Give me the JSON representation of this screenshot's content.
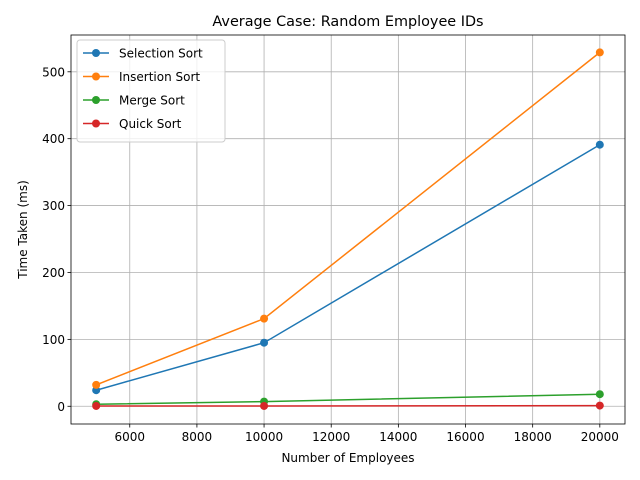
{
  "chart_data": {
    "type": "line",
    "title": "Average Case: Random Employee IDs",
    "xlabel": "Number of Employees",
    "ylabel": "Time Taken (ms)",
    "x": [
      5000,
      10000,
      20000
    ],
    "xlim": [
      4250,
      20750
    ],
    "ylim": [
      -26.5,
      555
    ],
    "xticks": [
      6000,
      8000,
      10000,
      12000,
      14000,
      16000,
      18000,
      20000
    ],
    "yticks": [
      0,
      100,
      200,
      300,
      400,
      500
    ],
    "grid": true,
    "legend_position": "upper-left",
    "marker": "circle",
    "series": [
      {
        "name": "Selection Sort",
        "color": "#1f77b4",
        "values": [
          24,
          95,
          391
        ]
      },
      {
        "name": "Insertion Sort",
        "color": "#ff7f0e",
        "values": [
          32,
          131,
          529
        ]
      },
      {
        "name": "Merge Sort",
        "color": "#2ca02c",
        "values": [
          3,
          7,
          18
        ]
      },
      {
        "name": "Quick Sort",
        "color": "#d62728",
        "values": [
          0.5,
          0.5,
          1
        ]
      }
    ]
  }
}
